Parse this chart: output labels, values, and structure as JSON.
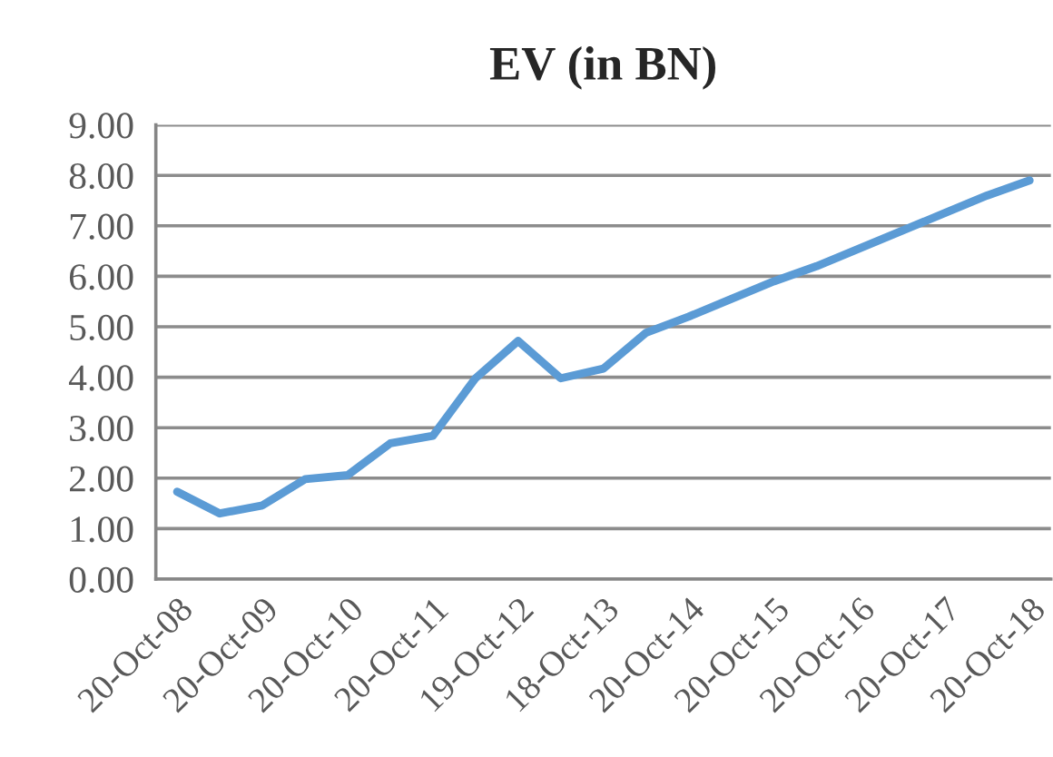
{
  "chart_data": {
    "type": "line",
    "title": "EV (in BN)",
    "categories": [
      "20-Oct-08",
      null,
      "20-Oct-09",
      null,
      "20-Oct-10",
      null,
      "20-Oct-11",
      null,
      "19-Oct-12",
      null,
      "18-Oct-13",
      null,
      "20-Oct-14",
      null,
      "20-Oct-15",
      null,
      "20-Oct-16",
      null,
      "20-Oct-17",
      null,
      "20-Oct-18"
    ],
    "series": [
      {
        "color": "#5b9bd5",
        "values": [
          1.73,
          1.3,
          1.46,
          1.98,
          2.06,
          2.69,
          2.84,
          3.98,
          4.72,
          3.98,
          4.17,
          4.88,
          5.2,
          5.55,
          5.9,
          6.2,
          6.55,
          6.9,
          7.25,
          7.6,
          7.9
        ]
      }
    ],
    "ylim": [
      0,
      9
    ],
    "yticks": [
      {
        "value": 0,
        "label": "0.00"
      },
      {
        "value": 1,
        "label": "1.00"
      },
      {
        "value": 2,
        "label": "2.00"
      },
      {
        "value": 3,
        "label": "3.00"
      },
      {
        "value": 4,
        "label": "4.00"
      },
      {
        "value": 5,
        "label": "5.00"
      },
      {
        "value": 6,
        "label": "6.00"
      },
      {
        "value": 7,
        "label": "7.00"
      },
      {
        "value": 8,
        "label": "8.00"
      },
      {
        "value": 9,
        "label": "9.00"
      }
    ],
    "grid": "y",
    "legend": false,
    "marker": "none",
    "line_style": "solid"
  }
}
